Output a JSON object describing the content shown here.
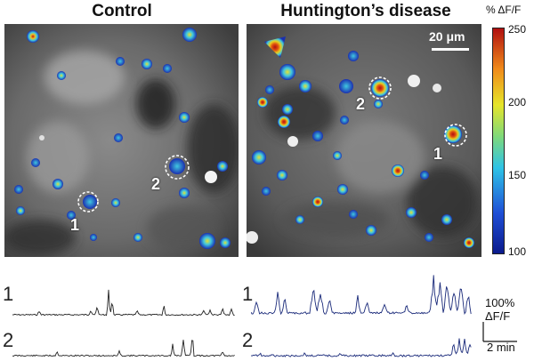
{
  "titles": {
    "control": "Control",
    "hd": "Huntington’s disease"
  },
  "colorbar": {
    "unit_label": "% ΔF/F",
    "ticks": [
      "250",
      "200",
      "150",
      "100"
    ]
  },
  "roi_labels": {
    "control_1": "1",
    "control_2": "2",
    "hd_1": "1",
    "hd_2": "2"
  },
  "scalebar": {
    "label": "20 μm"
  },
  "traces": {
    "control_1_label": "1",
    "control_2_label": "2",
    "hd_1_label": "1",
    "hd_2_label": "2",
    "amplitude_label_top": "100%",
    "amplitude_label_bottom": "ΔF/F",
    "time_label": "2 min"
  },
  "colors": {
    "control_trace": "#222222",
    "hd_trace": "#1a2a7a"
  }
}
